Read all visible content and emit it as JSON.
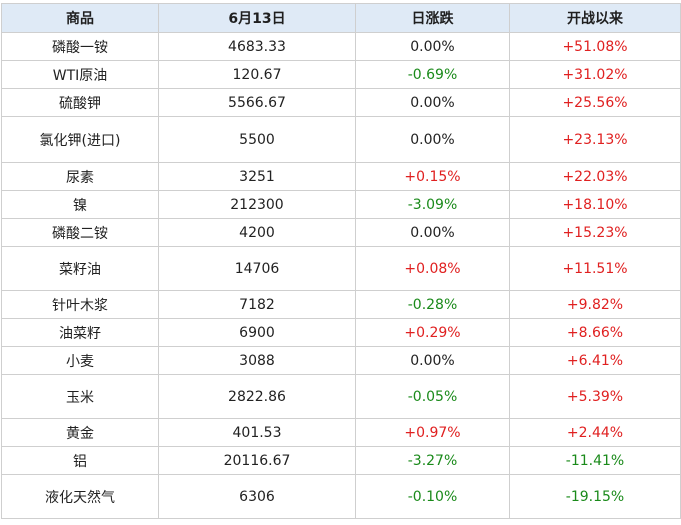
{
  "table": {
    "headers": [
      "商品",
      "6月13日",
      "日涨跌",
      "开战以来"
    ],
    "rows": [
      {
        "name": "磷酸一铵",
        "price": "4683.33",
        "daily": "0.00%",
        "since": "+51.08%"
      },
      {
        "name": "WTI原油",
        "price": "120.67",
        "daily": "-0.69%",
        "since": "+31.02%"
      },
      {
        "name": "硫酸钾",
        "price": "5566.67",
        "daily": "0.00%",
        "since": "+25.56%"
      },
      {
        "name": "氯化钾(进口)",
        "price": "5500",
        "daily": "0.00%",
        "since": "+23.13%"
      },
      {
        "name": "尿素",
        "price": "3251",
        "daily": "+0.15%",
        "since": "+22.03%"
      },
      {
        "name": "镍",
        "price": "212300",
        "daily": "-3.09%",
        "since": "+18.10%"
      },
      {
        "name": "磷酸二铵",
        "price": "4200",
        "daily": "0.00%",
        "since": "+15.23%"
      },
      {
        "name": "菜籽油",
        "price": "14706",
        "daily": "+0.08%",
        "since": "+11.51%"
      },
      {
        "name": "针叶木浆",
        "price": "7182",
        "daily": "-0.28%",
        "since": "+9.82%"
      },
      {
        "name": "油菜籽",
        "price": "6900",
        "daily": "+0.29%",
        "since": "+8.66%"
      },
      {
        "name": "小麦",
        "price": "3088",
        "daily": "0.00%",
        "since": "+6.41%"
      },
      {
        "name": "玉米",
        "price": "2822.86",
        "daily": "-0.05%",
        "since": "+5.39%"
      },
      {
        "name": "黄金",
        "price": "401.53",
        "daily": "+0.97%",
        "since": "+2.44%"
      },
      {
        "name": "铝",
        "price": "20116.67",
        "daily": "-3.27%",
        "since": "-11.41%"
      },
      {
        "name": "液化天然气",
        "price": "6306",
        "daily": "-0.10%",
        "since": "-19.15%"
      }
    ]
  },
  "colors": {
    "header_bg": "#dfeaf6",
    "border": "#cfcfcf",
    "positive": "#e02020",
    "negative": "#1a8a1a",
    "neutral": "#222222"
  }
}
